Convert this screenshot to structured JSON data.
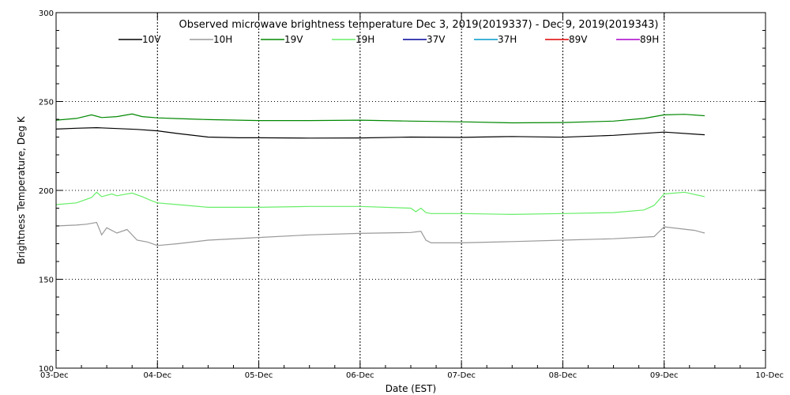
{
  "chart_data": {
    "type": "line",
    "title": "Observed microwave brightness temperature Dec  3, 2019(2019337) - Dec  9, 2019(2019343)",
    "xlabel": "Date (EST)",
    "ylabel": "Brightness Temperature, Deg K",
    "xlim": [
      0,
      7
    ],
    "ylim": [
      100,
      300
    ],
    "x_tick_values": [
      0,
      1,
      2,
      3,
      4,
      5,
      6,
      7
    ],
    "x_tick_labels": [
      "03-Dec",
      "04-Dec",
      "05-Dec",
      "06-Dec",
      "07-Dec",
      "08-Dec",
      "09-Dec",
      "10-Dec"
    ],
    "y_ticks": [
      100,
      150,
      200,
      250,
      300
    ],
    "grid": true,
    "legend_position": "top",
    "series": [
      {
        "name": "10V",
        "color": "#000000",
        "x": [
          0,
          0.2,
          0.4,
          0.6,
          0.8,
          1.0,
          1.2,
          1.5,
          1.8,
          2.0,
          2.5,
          3.0,
          3.5,
          4.0,
          4.5,
          5.0,
          5.5,
          6.0,
          6.4
        ],
        "y": [
          234.5,
          235,
          235.3,
          234.8,
          234.3,
          233.5,
          232,
          230,
          229.6,
          229.6,
          229.4,
          229.5,
          230,
          229.8,
          230.3,
          229.9,
          231,
          232.8,
          231.3
        ]
      },
      {
        "name": "10H",
        "color": "#999999",
        "x": [
          0,
          0.2,
          0.3,
          0.4,
          0.45,
          0.5,
          0.6,
          0.7,
          0.8,
          0.9,
          1.0,
          1.2,
          1.5,
          2.0,
          2.5,
          3.0,
          3.5,
          3.6,
          3.65,
          3.7,
          4.0,
          4.5,
          5.0,
          5.5,
          5.9,
          6.0,
          6.3,
          6.4
        ],
        "y": [
          180,
          180.5,
          181,
          182,
          175,
          179,
          176,
          178,
          172,
          171,
          169,
          170,
          172,
          173.5,
          175,
          175.8,
          176.3,
          177,
          172,
          170.5,
          170.5,
          171.2,
          172,
          172.8,
          174,
          179.5,
          177.5,
          176
        ]
      },
      {
        "name": "19V",
        "color": "#008800",
        "x": [
          0,
          0.2,
          0.35,
          0.45,
          0.6,
          0.75,
          0.85,
          1.0,
          1.2,
          1.5,
          2.0,
          2.5,
          3.0,
          3.5,
          4.0,
          4.5,
          5.0,
          5.5,
          5.8,
          6.0,
          6.2,
          6.4
        ],
        "y": [
          239.5,
          240.5,
          242.5,
          241,
          241.5,
          243,
          241.5,
          240.8,
          240.4,
          239.8,
          239.3,
          239.3,
          239.5,
          239,
          238.6,
          238,
          238.2,
          239,
          240.5,
          242.5,
          242.8,
          242
        ]
      },
      {
        "name": "19H",
        "color": "#66ee66",
        "x": [
          0,
          0.2,
          0.35,
          0.4,
          0.45,
          0.55,
          0.6,
          0.75,
          0.85,
          0.95,
          1.0,
          1.2,
          1.5,
          2.0,
          2.5,
          3.0,
          3.5,
          3.55,
          3.6,
          3.65,
          3.7,
          4.0,
          4.5,
          5.0,
          5.5,
          5.8,
          5.9,
          6.0,
          6.2,
          6.4
        ],
        "y": [
          192,
          193,
          196,
          199,
          196.5,
          198,
          197,
          198.5,
          196.5,
          194,
          193,
          192,
          190.5,
          190.5,
          191,
          191,
          190,
          188,
          190,
          187.5,
          187,
          187,
          186.5,
          187,
          187.5,
          189,
          191.5,
          198,
          199,
          196.5
        ]
      },
      {
        "name": "37V",
        "color": "#000099",
        "x": [],
        "y": []
      },
      {
        "name": "37H",
        "color": "#0099cc",
        "x": [],
        "y": []
      },
      {
        "name": "89V",
        "color": "#dd0000",
        "x": [],
        "y": []
      },
      {
        "name": "89H",
        "color": "#aa00cc",
        "x": [],
        "y": []
      }
    ]
  }
}
